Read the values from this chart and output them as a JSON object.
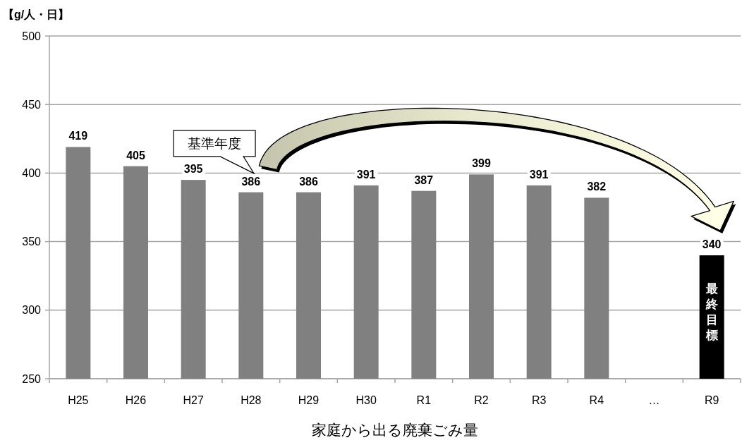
{
  "chart_data": {
    "type": "bar",
    "title": "家庭から出る廃棄ごみ量",
    "ylabel": "【g/人・日】",
    "categories": [
      "H25",
      "H26",
      "H27",
      "H28",
      "H29",
      "H30",
      "R1",
      "R2",
      "R3",
      "R4",
      "…",
      "R9"
    ],
    "values": [
      419,
      405,
      395,
      386,
      386,
      391,
      387,
      399,
      391,
      382,
      null,
      340
    ],
    "colors": [
      "#808080",
      "#808080",
      "#808080",
      "#808080",
      "#808080",
      "#808080",
      "#808080",
      "#808080",
      "#808080",
      "#808080",
      null,
      "#000000"
    ],
    "ylim": [
      250,
      500
    ],
    "yticks": [
      250,
      300,
      350,
      400,
      450,
      500
    ],
    "grid": "y",
    "data_labels": true,
    "annotations": [
      "基準年度",
      {
        "text": "最終目標",
        "x": "R9",
        "y": 340
      }
    ]
  }
}
